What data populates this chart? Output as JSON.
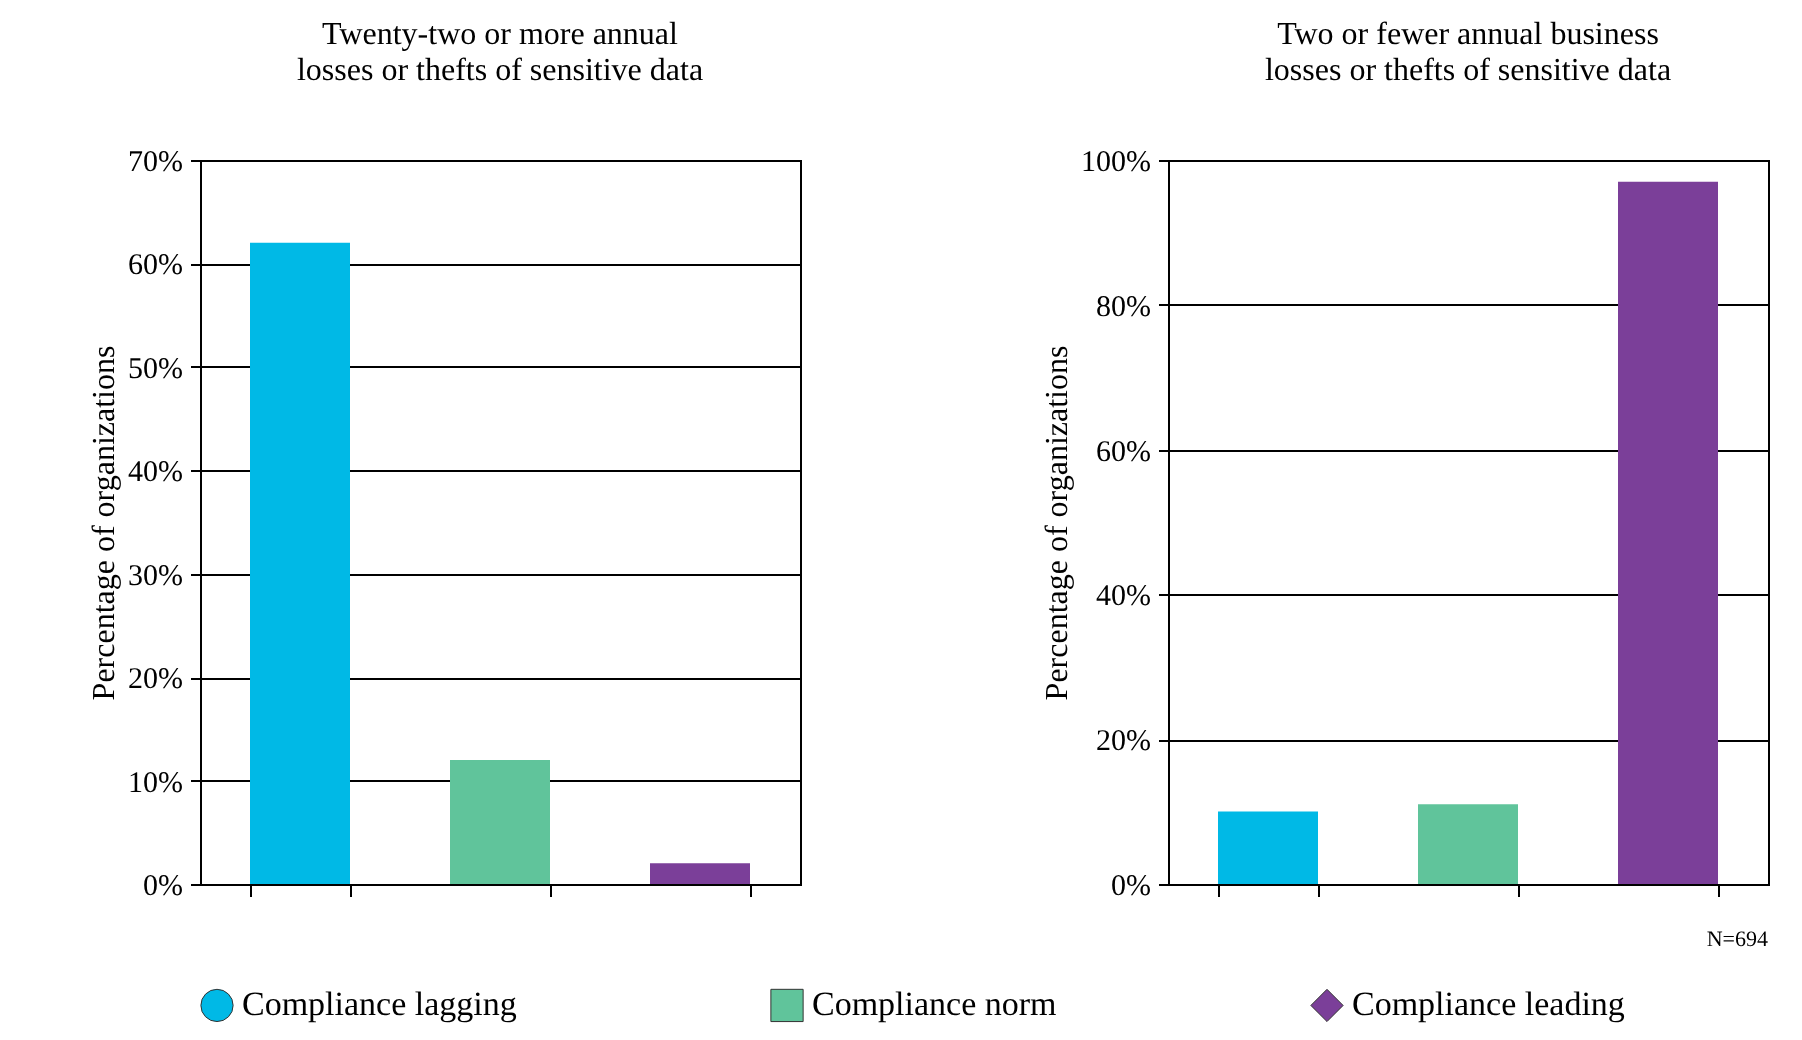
{
  "chart_data": [
    {
      "type": "bar",
      "title": "Twenty-two or more annual\nlosses or thefts of sensitive data",
      "ylabel": "Percentage of organizations",
      "categories": [
        null,
        null,
        null
      ],
      "series": [
        {
          "name": "Compliance lagging",
          "color": "#00b9e6",
          "marker": "circle",
          "values": [
            62,
            null,
            null
          ]
        },
        {
          "name": "Compliance norm",
          "color": "#60c49b",
          "marker": "square",
          "values": [
            null,
            12,
            null
          ]
        },
        {
          "name": "Compliance leading",
          "color": "#7b3f99",
          "marker": "diamond",
          "values": [
            null,
            null,
            2
          ]
        }
      ],
      "ylim": [
        0,
        70
      ],
      "yticks": [
        {
          "value": 0,
          "label": "0%"
        },
        {
          "value": 10,
          "label": "10%"
        },
        {
          "value": 20,
          "label": "20%"
        },
        {
          "value": 30,
          "label": "30%"
        },
        {
          "value": 40,
          "label": "40%"
        },
        {
          "value": 50,
          "label": "50%"
        },
        {
          "value": 60,
          "label": "60%"
        },
        {
          "value": 70,
          "label": "70%"
        }
      ],
      "grid": "y",
      "legend": "bottom"
    },
    {
      "type": "bar",
      "title": "Two or fewer annual business\nlosses or thefts of sensitive data",
      "ylabel": "Percentage of organizations",
      "categories": [
        null,
        null,
        null
      ],
      "series": [
        {
          "name": "Compliance lagging",
          "color": "#00b9e6",
          "marker": "circle",
          "values": [
            10,
            null,
            null
          ]
        },
        {
          "name": "Compliance norm",
          "color": "#60c49b",
          "marker": "square",
          "values": [
            null,
            11,
            null
          ]
        },
        {
          "name": "Compliance leading",
          "color": "#7b3f99",
          "marker": "diamond",
          "values": [
            null,
            null,
            97
          ]
        }
      ],
      "ylim": [
        0,
        100
      ],
      "yticks": [
        {
          "value": 0,
          "label": "0%"
        },
        {
          "value": 20,
          "label": "20%"
        },
        {
          "value": 40,
          "label": "40%"
        },
        {
          "value": 60,
          "label": "60%"
        },
        {
          "value": 80,
          "label": "80%"
        },
        {
          "value": 100,
          "label": "100%"
        }
      ],
      "grid": "y",
      "legend": "bottom",
      "annotations": [
        "N=694"
      ]
    }
  ]
}
